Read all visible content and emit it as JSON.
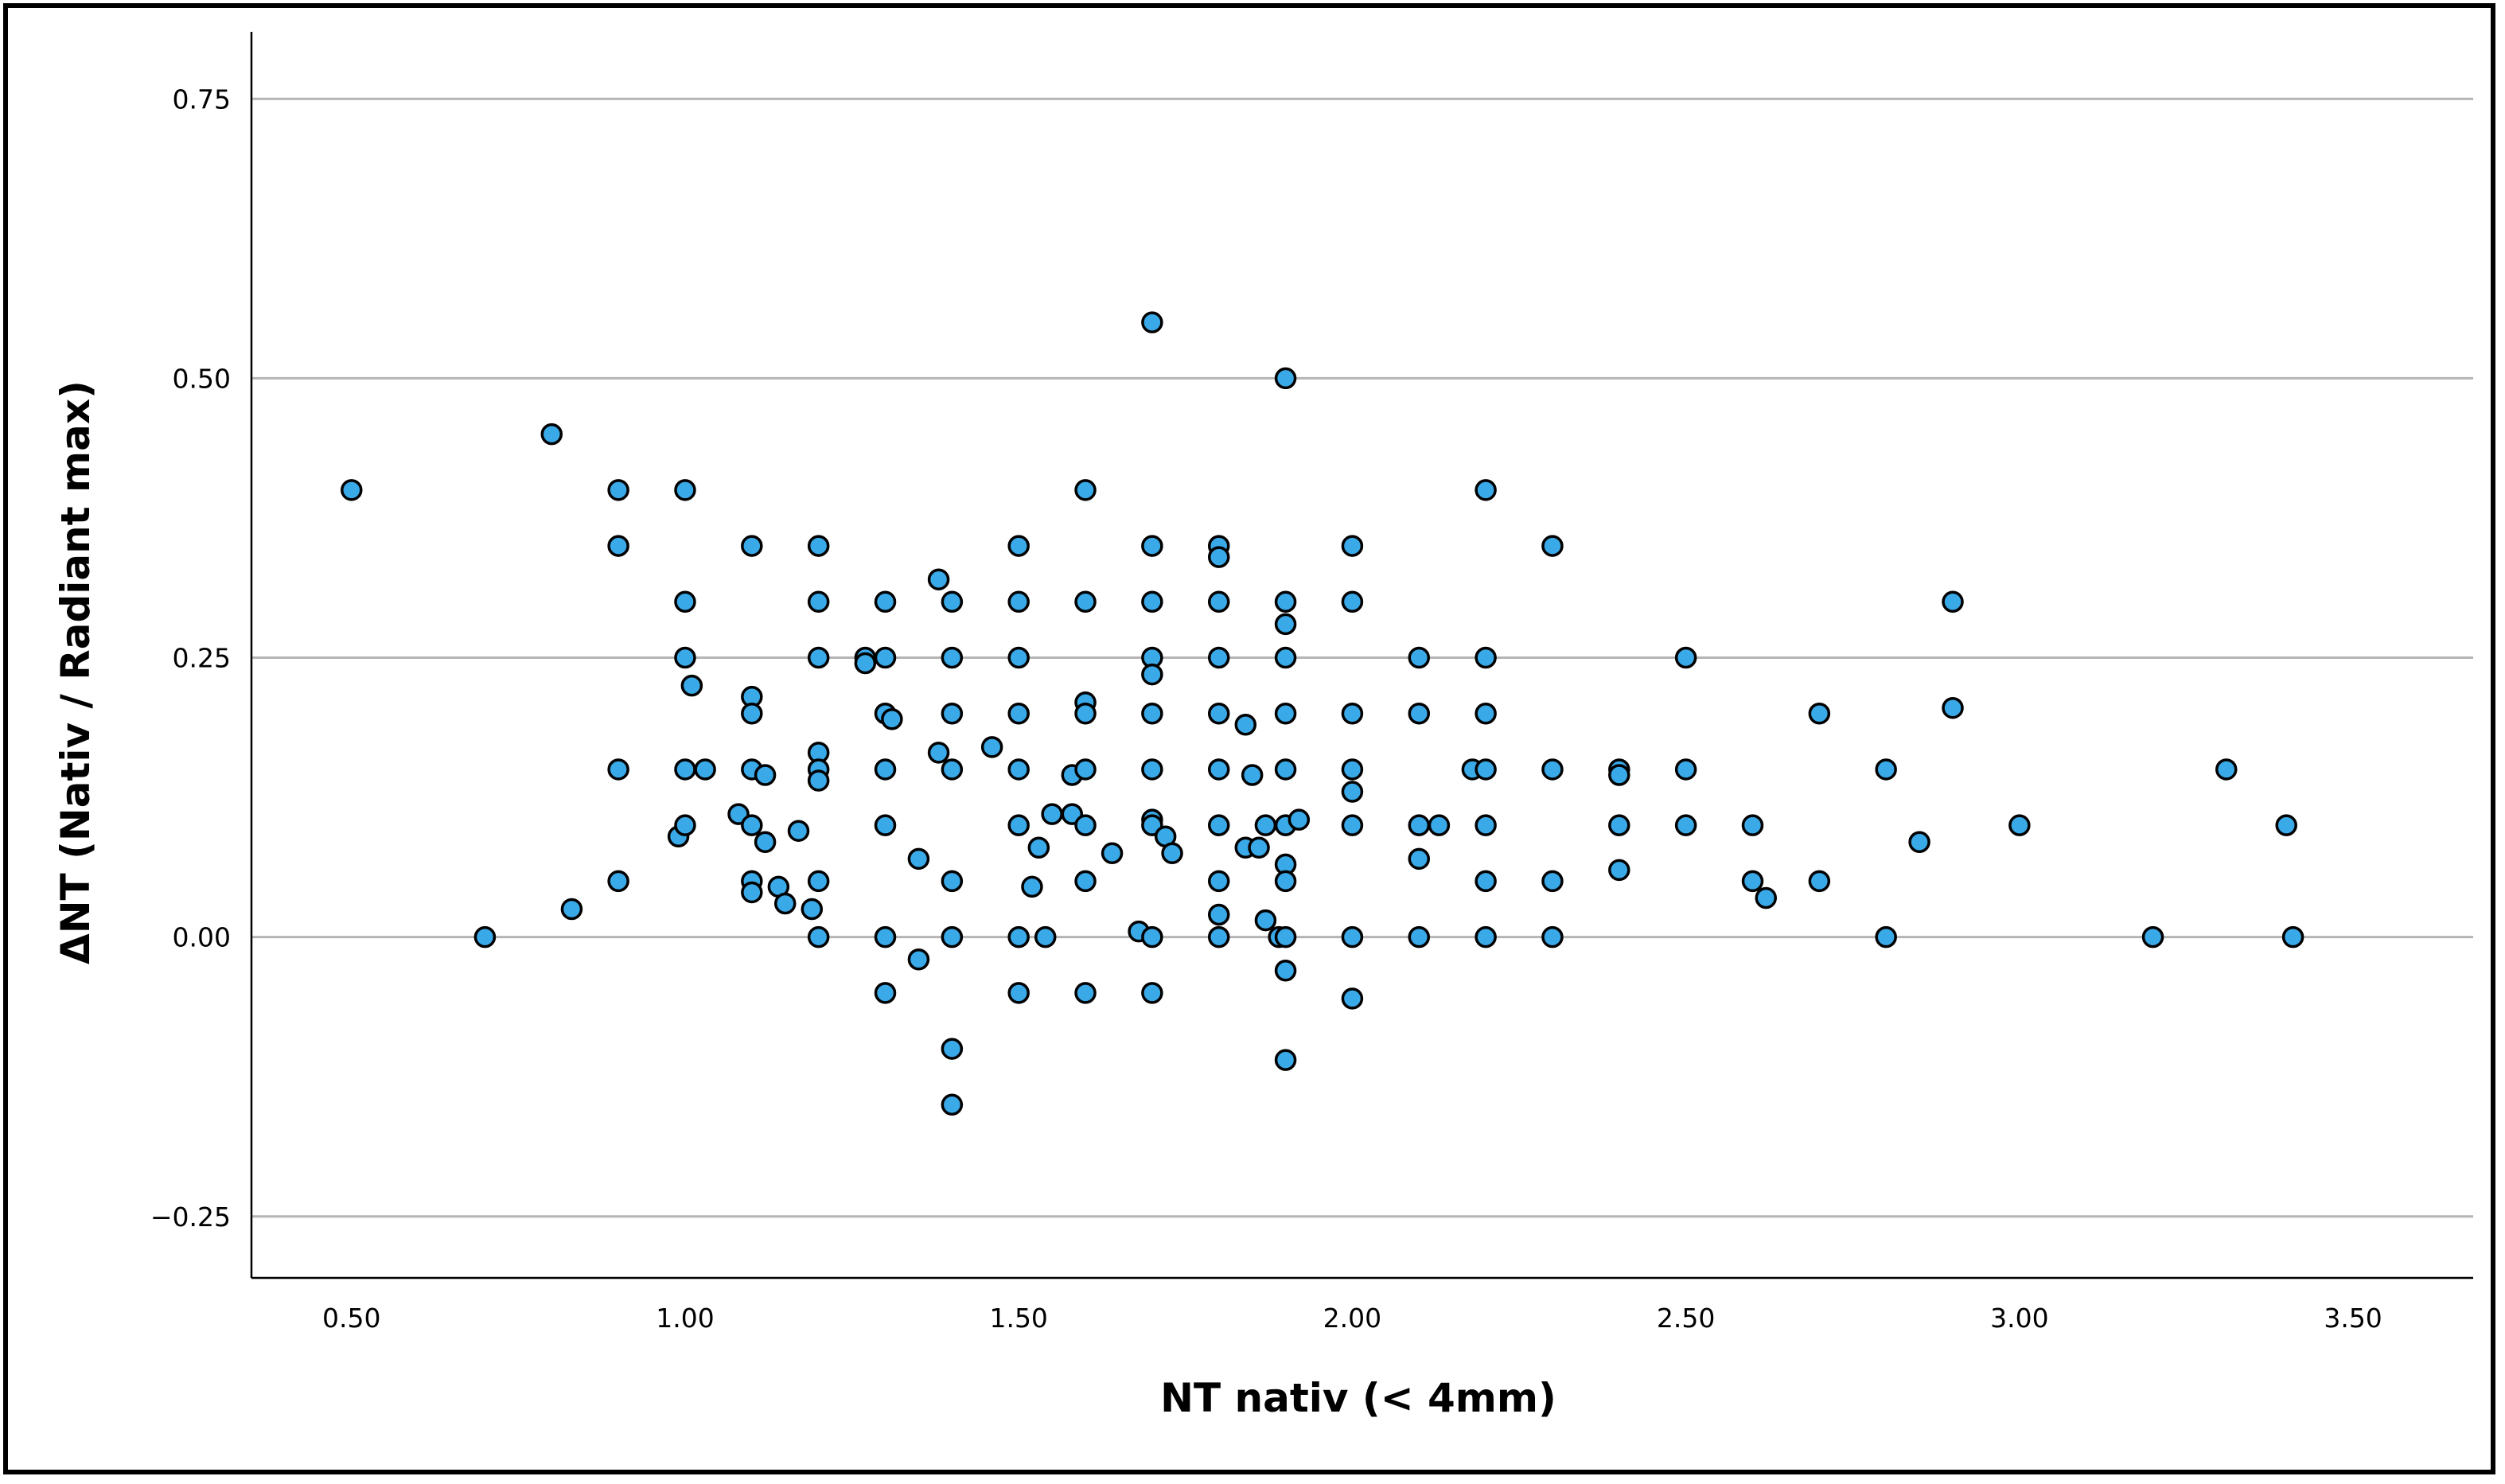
{
  "chart_data": {
    "type": "scatter",
    "xlabel": "NT nativ (< 4mm)",
    "ylabel": "ΔNT (Nativ / Radiant max)",
    "xlim": [
      0.35,
      3.68
    ],
    "ylim": [
      -0.305,
      0.81
    ],
    "xticks": [
      0.5,
      1.0,
      1.5,
      2.0,
      2.5,
      3.0,
      3.5
    ],
    "xtick_labels": [
      "0.50",
      "1.00",
      "1.50",
      "2.00",
      "2.50",
      "3.00",
      "3.50"
    ],
    "yticks": [
      -0.25,
      0.0,
      0.25,
      0.5,
      0.75
    ],
    "ytick_labels": [
      "−0.25",
      "0.00",
      "0.25",
      "0.50",
      "0.75"
    ],
    "grid": "horizontal",
    "marker_color": "#3aa9e8",
    "marker_edge": "#000000",
    "points": [
      [
        0.5,
        0.4
      ],
      [
        0.7,
        0.0
      ],
      [
        0.8,
        0.45
      ],
      [
        0.83,
        0.025
      ],
      [
        0.9,
        0.4
      ],
      [
        0.9,
        0.35
      ],
      [
        0.9,
        0.15
      ],
      [
        0.9,
        0.05
      ],
      [
        0.99,
        0.09
      ],
      [
        1.0,
        0.4
      ],
      [
        1.0,
        0.3
      ],
      [
        1.0,
        0.25
      ],
      [
        1.01,
        0.225
      ],
      [
        1.0,
        0.15
      ],
      [
        1.03,
        0.15
      ],
      [
        1.0,
        0.1
      ],
      [
        1.08,
        0.11
      ],
      [
        1.1,
        0.35
      ],
      [
        1.1,
        0.215
      ],
      [
        1.1,
        0.2
      ],
      [
        1.1,
        0.15
      ],
      [
        1.12,
        0.145
      ],
      [
        1.1,
        0.1
      ],
      [
        1.12,
        0.085
      ],
      [
        1.1,
        0.05
      ],
      [
        1.1,
        0.04
      ],
      [
        1.14,
        0.045
      ],
      [
        1.15,
        0.03
      ],
      [
        1.17,
        0.095
      ],
      [
        1.19,
        0.025
      ],
      [
        1.2,
        0.35
      ],
      [
        1.2,
        0.3
      ],
      [
        1.2,
        0.25
      ],
      [
        1.2,
        0.165
      ],
      [
        1.2,
        0.15
      ],
      [
        1.2,
        0.14
      ],
      [
        1.2,
        0.05
      ],
      [
        1.2,
        0.0
      ],
      [
        1.27,
        0.25
      ],
      [
        1.27,
        0.245
      ],
      [
        1.3,
        0.3
      ],
      [
        1.3,
        0.25
      ],
      [
        1.3,
        0.2
      ],
      [
        1.31,
        0.195
      ],
      [
        1.3,
        0.15
      ],
      [
        1.3,
        0.1
      ],
      [
        1.3,
        0.0
      ],
      [
        1.3,
        -0.05
      ],
      [
        1.35,
        0.07
      ],
      [
        1.35,
        -0.02
      ],
      [
        1.38,
        0.32
      ],
      [
        1.38,
        0.165
      ],
      [
        1.4,
        0.3
      ],
      [
        1.4,
        0.25
      ],
      [
        1.4,
        0.2
      ],
      [
        1.4,
        0.15
      ],
      [
        1.4,
        0.05
      ],
      [
        1.4,
        0.0
      ],
      [
        1.4,
        -0.1
      ],
      [
        1.4,
        -0.15
      ],
      [
        1.46,
        0.17
      ],
      [
        1.5,
        0.35
      ],
      [
        1.5,
        0.3
      ],
      [
        1.5,
        0.25
      ],
      [
        1.5,
        0.2
      ],
      [
        1.5,
        0.15
      ],
      [
        1.5,
        0.1
      ],
      [
        1.5,
        0.0
      ],
      [
        1.5,
        -0.05
      ],
      [
        1.52,
        0.045
      ],
      [
        1.53,
        0.08
      ],
      [
        1.54,
        0.0
      ],
      [
        1.55,
        0.11
      ],
      [
        1.58,
        0.11
      ],
      [
        1.58,
        0.145
      ],
      [
        1.6,
        0.4
      ],
      [
        1.6,
        0.3
      ],
      [
        1.6,
        0.21
      ],
      [
        1.6,
        0.2
      ],
      [
        1.6,
        0.15
      ],
      [
        1.6,
        0.1
      ],
      [
        1.6,
        0.05
      ],
      [
        1.6,
        -0.05
      ],
      [
        1.64,
        0.075
      ],
      [
        1.68,
        0.005
      ],
      [
        1.7,
        0.55
      ],
      [
        1.7,
        0.35
      ],
      [
        1.7,
        0.3
      ],
      [
        1.7,
        0.25
      ],
      [
        1.7,
        0.235
      ],
      [
        1.7,
        0.2
      ],
      [
        1.7,
        0.15
      ],
      [
        1.7,
        0.105
      ],
      [
        1.7,
        0.1
      ],
      [
        1.7,
        0.0
      ],
      [
        1.7,
        -0.05
      ],
      [
        1.72,
        0.09
      ],
      [
        1.73,
        0.075
      ],
      [
        1.8,
        0.35
      ],
      [
        1.8,
        0.34
      ],
      [
        1.8,
        0.3
      ],
      [
        1.8,
        0.25
      ],
      [
        1.8,
        0.2
      ],
      [
        1.8,
        0.15
      ],
      [
        1.8,
        0.1
      ],
      [
        1.8,
        0.05
      ],
      [
        1.8,
        0.02
      ],
      [
        1.8,
        0.0
      ],
      [
        1.84,
        0.19
      ],
      [
        1.84,
        0.08
      ],
      [
        1.85,
        0.145
      ],
      [
        1.86,
        0.08
      ],
      [
        1.87,
        0.1
      ],
      [
        1.87,
        0.015
      ],
      [
        1.89,
        0.0
      ],
      [
        1.9,
        0.5
      ],
      [
        1.9,
        0.3
      ],
      [
        1.9,
        0.28
      ],
      [
        1.9,
        0.25
      ],
      [
        1.9,
        0.2
      ],
      [
        1.9,
        0.15
      ],
      [
        1.9,
        0.1
      ],
      [
        1.9,
        0.065
      ],
      [
        1.9,
        0.05
      ],
      [
        1.9,
        0.0
      ],
      [
        1.9,
        -0.03
      ],
      [
        1.9,
        -0.11
      ],
      [
        1.92,
        0.105
      ],
      [
        2.0,
        0.35
      ],
      [
        2.0,
        0.3
      ],
      [
        2.0,
        0.2
      ],
      [
        2.0,
        0.15
      ],
      [
        2.0,
        0.13
      ],
      [
        2.0,
        0.1
      ],
      [
        2.0,
        0.0
      ],
      [
        2.0,
        -0.055
      ],
      [
        2.1,
        0.25
      ],
      [
        2.1,
        0.2
      ],
      [
        2.1,
        0.1
      ],
      [
        2.1,
        0.07
      ],
      [
        2.1,
        0.0
      ],
      [
        2.13,
        0.1
      ],
      [
        2.18,
        0.15
      ],
      [
        2.2,
        0.4
      ],
      [
        2.2,
        0.25
      ],
      [
        2.2,
        0.2
      ],
      [
        2.2,
        0.15
      ],
      [
        2.2,
        0.1
      ],
      [
        2.2,
        0.05
      ],
      [
        2.2,
        0.0
      ],
      [
        2.3,
        0.35
      ],
      [
        2.3,
        0.15
      ],
      [
        2.3,
        0.05
      ],
      [
        2.3,
        0.0
      ],
      [
        2.4,
        0.15
      ],
      [
        2.4,
        0.145
      ],
      [
        2.4,
        0.1
      ],
      [
        2.4,
        0.06
      ],
      [
        2.5,
        0.25
      ],
      [
        2.5,
        0.15
      ],
      [
        2.5,
        0.1
      ],
      [
        2.6,
        0.1
      ],
      [
        2.6,
        0.05
      ],
      [
        2.62,
        0.035
      ],
      [
        2.7,
        0.2
      ],
      [
        2.7,
        0.05
      ],
      [
        2.8,
        0.15
      ],
      [
        2.8,
        0.0
      ],
      [
        2.85,
        0.085
      ],
      [
        2.9,
        0.3
      ],
      [
        2.9,
        0.205
      ],
      [
        3.0,
        0.1
      ],
      [
        3.2,
        0.0
      ],
      [
        3.31,
        0.15
      ],
      [
        3.4,
        0.1
      ],
      [
        3.41,
        0.0
      ]
    ]
  }
}
